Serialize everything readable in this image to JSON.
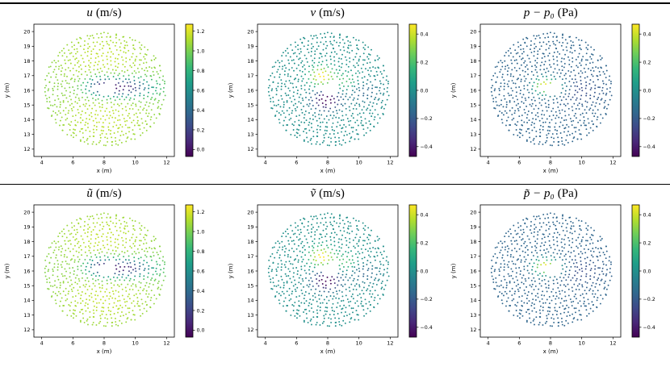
{
  "figure": {
    "background": "#ffffff",
    "rule_color": "#000000"
  },
  "chart_data": {
    "type": "scatter",
    "layout": "2x3-grid",
    "description": "Particle scatter plots of flow past a triangular body: instantaneous (top row) and filtered (bottom row) velocity components and pressure, colored with viridis colormap.",
    "common": {
      "xlabel": "x (m)",
      "ylabel": "y (m)",
      "xlim": [
        3.5,
        12.5
      ],
      "ylim": [
        11.5,
        20.5
      ],
      "xticks": [
        4,
        6,
        8,
        10,
        12
      ],
      "yticks": [
        12,
        13,
        14,
        15,
        16,
        17,
        18,
        19,
        20
      ],
      "grid": false,
      "colormap": {
        "name": "viridis",
        "stops": [
          [
            68,
            1,
            84
          ],
          [
            72,
            40,
            120
          ],
          [
            62,
            74,
            137
          ],
          [
            49,
            104,
            142
          ],
          [
            38,
            130,
            142
          ],
          [
            31,
            158,
            137
          ],
          [
            53,
            183,
            121
          ],
          [
            109,
            205,
            89
          ],
          [
            180,
            222,
            44
          ],
          [
            253,
            231,
            37
          ]
        ]
      },
      "geometry": {
        "center": [
          8.05,
          16.05
        ],
        "r0": 0.45,
        "outer_radius": 3.85,
        "ring_spacing": 0.26,
        "point_spacing": 0.26,
        "jitter": 0.14,
        "marker_radius": 0.95,
        "triangle": [
          [
            6.9,
            16.12
          ],
          [
            8.6,
            16.62
          ],
          [
            8.6,
            15.72
          ]
        ]
      },
      "fields": {
        "u": {
          "base": 1.0,
          "blobs": [
            {
              "x": 9.2,
              "y": 16.2,
              "sx": 1.3,
              "sy": 0.45,
              "amp": -1.05
            },
            {
              "x": 7.7,
              "y": 16.3,
              "sx": 0.6,
              "sy": 0.45,
              "amp": -0.5
            },
            {
              "x": 8.0,
              "y": 18.2,
              "sx": 2.2,
              "sy": 1.4,
              "amp": 0.15
            },
            {
              "x": 8.0,
              "y": 14.0,
              "sx": 2.2,
              "sy": 1.4,
              "amp": 0.15
            }
          ]
        },
        "v": {
          "base": 0.0,
          "blobs": [
            {
              "x": 7.6,
              "y": 16.95,
              "sx": 0.55,
              "sy": 0.5,
              "amp": 0.5
            },
            {
              "x": 7.9,
              "y": 15.35,
              "sx": 0.65,
              "sy": 0.5,
              "amp": -0.52
            },
            {
              "x": 9.2,
              "y": 16.6,
              "sx": 0.6,
              "sy": 0.45,
              "amp": 0.22
            },
            {
              "x": 10.3,
              "y": 15.9,
              "sx": 0.7,
              "sy": 0.5,
              "amp": -0.18
            }
          ]
        },
        "p": {
          "base": -0.16,
          "blobs": [
            {
              "x": 7.6,
              "y": 16.3,
              "sx": 0.5,
              "sy": 0.4,
              "amp": 0.62
            },
            {
              "x": 8.5,
              "y": 16.2,
              "sx": 0.55,
              "sy": 0.4,
              "amp": 0.2
            },
            {
              "x": 9.6,
              "y": 16.0,
              "sx": 1.2,
              "sy": 0.6,
              "amp": -0.1
            }
          ]
        }
      }
    },
    "plots": [
      {
        "title_symbol": "u",
        "title_unit": "(m/s)",
        "field": "u",
        "clim": [
          -0.07,
          1.27
        ],
        "colorbar_ticks": [
          0.0,
          0.2,
          0.4,
          0.6,
          0.8,
          1.0,
          1.2
        ]
      },
      {
        "title_symbol": "v",
        "title_unit": "(m/s)",
        "field": "v",
        "clim": [
          -0.47,
          0.47
        ],
        "colorbar_ticks": [
          -0.4,
          -0.2,
          0.0,
          0.2,
          0.4
        ]
      },
      {
        "title_symbol": "p − p₀",
        "title_unit": "(Pa)",
        "field": "p",
        "clim": [
          -0.47,
          0.47
        ],
        "colorbar_ticks": [
          -0.4,
          -0.2,
          0.0,
          0.2,
          0.4
        ]
      },
      {
        "title_symbol": "ũ",
        "title_unit": "(m/s)",
        "field": "u",
        "clim": [
          -0.07,
          1.27
        ],
        "colorbar_ticks": [
          0.0,
          0.2,
          0.4,
          0.6,
          0.8,
          1.0,
          1.2
        ]
      },
      {
        "title_symbol": "ṽ",
        "title_unit": "(m/s)",
        "field": "v",
        "clim": [
          -0.47,
          0.47
        ],
        "colorbar_ticks": [
          -0.4,
          -0.2,
          0.0,
          0.2,
          0.4
        ]
      },
      {
        "title_symbol": "p̃ − p₀",
        "title_unit": "(Pa)",
        "field": "p",
        "clim": [
          -0.47,
          0.47
        ],
        "colorbar_ticks": [
          -0.4,
          -0.2,
          0.0,
          0.2,
          0.4
        ]
      }
    ]
  }
}
